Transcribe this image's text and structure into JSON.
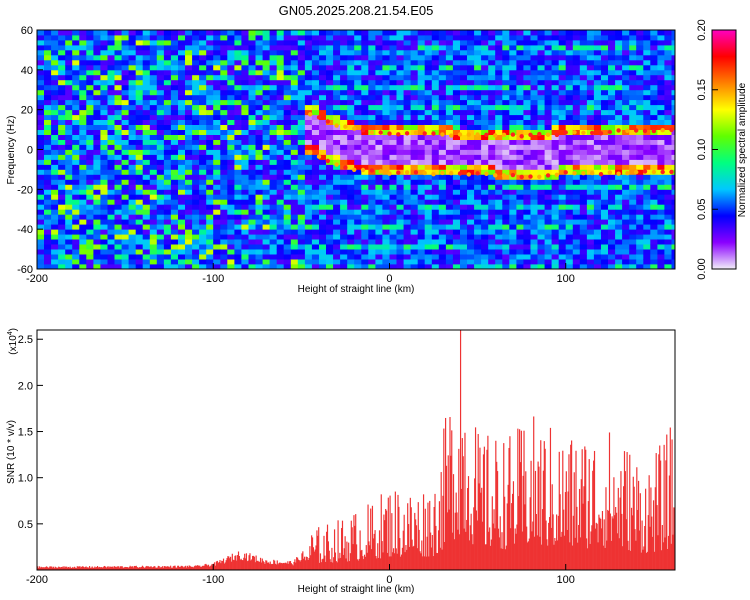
{
  "title": "GN05.2025.208.21.54.E05",
  "chart_data": [
    {
      "type": "heatmap",
      "xlabel": "Height of straight line (km)",
      "ylabel": "Frequency (Hz)",
      "xlim": [
        -200,
        162
      ],
      "ylim": [
        -60,
        60
      ],
      "xticks": [
        -200,
        -100,
        0,
        100
      ],
      "yticks": [
        60,
        40,
        20,
        0,
        -20,
        -40,
        -60
      ],
      "colorbar": {
        "label": "Normalized spectral amplitude",
        "range": [
          0.0,
          0.2
        ],
        "ticks": [
          "0.00",
          "0.05",
          "0.10",
          "0.15",
          "0.20"
        ],
        "colors": [
          "#f2eef8",
          "#8a00ff",
          "#0000ff",
          "#00c8ff",
          "#00ff80",
          "#60ff00",
          "#ffff00",
          "#ff8000",
          "#ff0000",
          "#ff00c0"
        ]
      },
      "bands": [
        {
          "x": [
            -45,
            -30,
            -20,
            0,
            20,
            50,
            80,
            100,
            130,
            160
          ],
          "y": [
            18,
            12,
            10,
            8,
            8,
            7,
            7,
            8,
            9,
            10
          ]
        },
        {
          "x": [
            -45,
            -30,
            -20,
            0,
            20,
            50,
            80,
            100,
            130,
            160
          ],
          "y": [
            -2,
            -8,
            -10,
            -12,
            -12,
            -12,
            -14,
            -12,
            -12,
            -11
          ]
        }
      ]
    },
    {
      "type": "bar",
      "xlabel": "Height of straight line (km)",
      "ylabel": "SNR (10 * v/v)",
      "yscale_label": "(x10",
      "yscale_exp": "4",
      "yscale_close": ")",
      "xlim": [
        -200,
        162
      ],
      "ylim": [
        0,
        2.6
      ],
      "xticks": [
        -200,
        -100,
        0,
        100
      ],
      "yticks": [
        "0.5",
        "1.0",
        "1.5",
        "2.0",
        "2.5"
      ],
      "color": "#ee3333",
      "envelope": [
        {
          "x": -200,
          "y": 0.04
        },
        {
          "x": -110,
          "y": 0.05
        },
        {
          "x": -100,
          "y": 0.08
        },
        {
          "x": -85,
          "y": 0.22
        },
        {
          "x": -70,
          "y": 0.12
        },
        {
          "x": -55,
          "y": 0.1
        },
        {
          "x": -50,
          "y": 0.2
        },
        {
          "x": -45,
          "y": 0.45
        },
        {
          "x": -30,
          "y": 0.55
        },
        {
          "x": -10,
          "y": 0.75
        },
        {
          "x": 0,
          "y": 0.95
        },
        {
          "x": 15,
          "y": 0.9
        },
        {
          "x": 25,
          "y": 1.0
        },
        {
          "x": 30,
          "y": 1.5
        },
        {
          "x": 40,
          "y": 2.6
        },
        {
          "x": 50,
          "y": 1.5
        },
        {
          "x": 70,
          "y": 1.5
        },
        {
          "x": 80,
          "y": 1.7
        },
        {
          "x": 100,
          "y": 1.5
        },
        {
          "x": 120,
          "y": 1.6
        },
        {
          "x": 130,
          "y": 1.5
        },
        {
          "x": 145,
          "y": 1.2
        },
        {
          "x": 155,
          "y": 1.4
        },
        {
          "x": 162,
          "y": 1.7
        }
      ]
    }
  ]
}
